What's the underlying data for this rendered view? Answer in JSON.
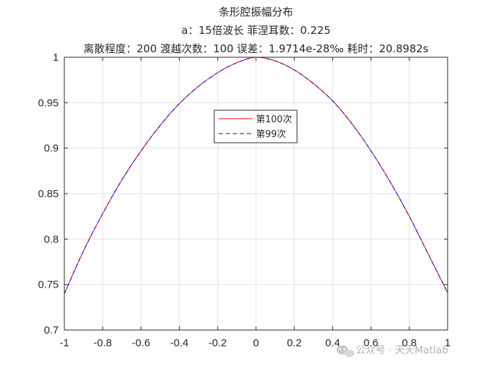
{
  "chart_data": {
    "type": "line",
    "title_lines": [
      "条形腔振幅分布",
      "a：15倍波长 菲涅耳数：0.225",
      "离散程度：200 渡越次数：100 误差：1.9714e-28‰ 耗时：20.8982s"
    ],
    "xlabel": "",
    "ylabel": "",
    "xlim": [
      -1,
      1
    ],
    "ylim": [
      0.7,
      1
    ],
    "xticks": [
      -1,
      -0.8,
      -0.6,
      -0.4,
      -0.2,
      0,
      0.2,
      0.4,
      0.6,
      0.8,
      1
    ],
    "yticks": [
      0.7,
      0.75,
      0.8,
      0.85,
      0.9,
      0.95,
      1
    ],
    "xtick_labels": [
      "-1",
      "-0.8",
      "-0.6",
      "-0.4",
      "-0.2",
      "0",
      "0.2",
      "0.4",
      "0.6",
      "0.8",
      "1"
    ],
    "ytick_labels": [
      "0.7",
      "0.75",
      "0.8",
      "0.85",
      "0.9",
      "0.95",
      "1"
    ],
    "grid": true,
    "legend_position": "upper-center",
    "series": [
      {
        "name": "第100次",
        "color": "#ff0000",
        "style": "solid",
        "x": [
          -1,
          -0.9,
          -0.8,
          -0.7,
          -0.6,
          -0.5,
          -0.4,
          -0.3,
          -0.2,
          -0.1,
          0,
          0.1,
          0.2,
          0.3,
          0.4,
          0.5,
          0.6,
          0.7,
          0.8,
          0.9,
          1
        ],
        "y": [
          0.74,
          0.787,
          0.828,
          0.865,
          0.897,
          0.925,
          0.949,
          0.968,
          0.983,
          0.994,
          1.0,
          0.996,
          0.986,
          0.971,
          0.952,
          0.927,
          0.897,
          0.863,
          0.825,
          0.783,
          0.741
        ]
      },
      {
        "name": "第99次",
        "color": "#0000ff",
        "style": "dashed",
        "x": [
          -1,
          -0.9,
          -0.8,
          -0.7,
          -0.6,
          -0.5,
          -0.4,
          -0.3,
          -0.2,
          -0.1,
          0,
          0.1,
          0.2,
          0.3,
          0.4,
          0.5,
          0.6,
          0.7,
          0.8,
          0.9,
          1
        ],
        "y": [
          0.74,
          0.787,
          0.828,
          0.865,
          0.897,
          0.925,
          0.949,
          0.968,
          0.983,
          0.994,
          1.0,
          0.996,
          0.986,
          0.971,
          0.952,
          0.927,
          0.897,
          0.863,
          0.825,
          0.783,
          0.741
        ]
      }
    ]
  },
  "watermark": {
    "text": "公众号 · 天天Matlab",
    "icon": "wechat-icon"
  }
}
